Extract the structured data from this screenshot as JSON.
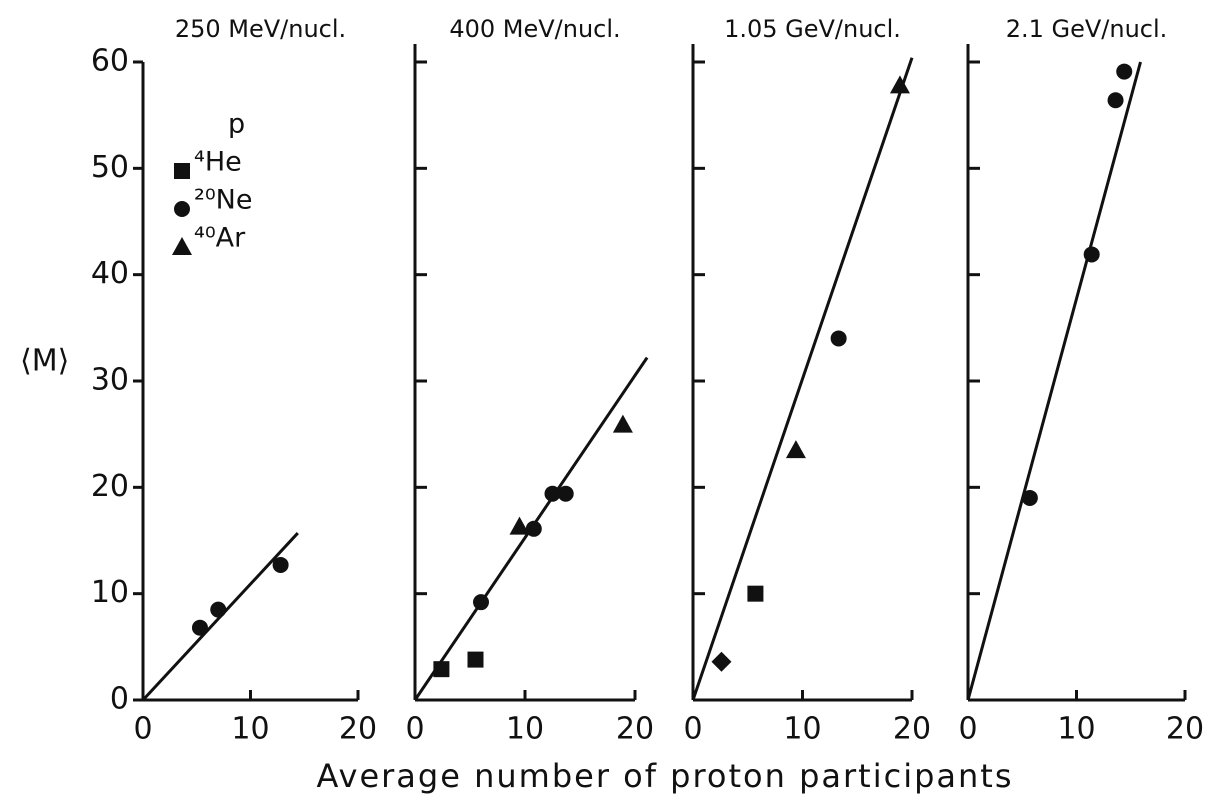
{
  "y_label": "⟨M⟩",
  "x_label": "Average number of proton participants",
  "legend": [
    {
      "name": "p",
      "marker": "diamond",
      "show_marker": false
    },
    {
      "name": "⁴He",
      "marker": "square"
    },
    {
      "name": "²⁰Ne",
      "marker": "circle"
    },
    {
      "name": "⁴⁰Ar",
      "marker": "triangle"
    }
  ],
  "chart_data": [
    {
      "type": "scatter",
      "title": "250 MeV/nucl.",
      "xlim": [
        0,
        20
      ],
      "xticks": [
        0,
        10,
        20
      ],
      "ylim": [
        0,
        60
      ],
      "yticks": [
        0,
        10,
        20,
        30,
        40,
        50,
        60
      ],
      "color": "#111111",
      "series": [
        {
          "name": "²⁰Ne",
          "marker": "circle",
          "x": [
            5.3,
            7.0,
            12.8
          ],
          "values": [
            6.8,
            8.5,
            12.7
          ]
        }
      ],
      "fit": {
        "x": [
          0,
          14.4
        ],
        "values": [
          0,
          15.7
        ]
      }
    },
    {
      "type": "scatter",
      "title": "400 MeV/nucl.",
      "xlim": [
        0,
        20
      ],
      "xticks": [
        0,
        10,
        20
      ],
      "ylim": [
        0,
        60
      ],
      "yticks": [
        0,
        10,
        20,
        30,
        40,
        50,
        60
      ],
      "color": "#111111",
      "series": [
        {
          "name": "⁴He",
          "marker": "square",
          "x": [
            2.4,
            5.5
          ],
          "values": [
            2.9,
            3.8
          ]
        },
        {
          "name": "²⁰Ne",
          "marker": "circle",
          "x": [
            6.0,
            10.8,
            12.5,
            13.7
          ],
          "values": [
            9.2,
            16.1,
            19.4,
            19.4
          ]
        },
        {
          "name": "⁴⁰Ar",
          "marker": "triangle",
          "x": [
            9.5,
            18.9
          ],
          "values": [
            16.3,
            25.9
          ]
        }
      ],
      "fit": {
        "x": [
          0,
          21.1
        ],
        "values": [
          0,
          32.2
        ]
      }
    },
    {
      "type": "scatter",
      "title": "1.05 GeV/nucl.",
      "xlim": [
        0,
        20
      ],
      "xticks": [
        0,
        10,
        20
      ],
      "ylim": [
        0,
        60
      ],
      "yticks": [
        0,
        10,
        20,
        30,
        40,
        50,
        60
      ],
      "color": "#111111",
      "series": [
        {
          "name": "p",
          "marker": "diamond",
          "x": [
            2.6
          ],
          "values": [
            3.6
          ]
        },
        {
          "name": "⁴He",
          "marker": "square",
          "x": [
            5.7
          ],
          "values": [
            10.0
          ]
        },
        {
          "name": "²⁰Ne",
          "marker": "circle",
          "x": [
            13.3
          ],
          "values": [
            34.0
          ]
        },
        {
          "name": "⁴⁰Ar",
          "marker": "triangle",
          "x": [
            9.4,
            18.9
          ],
          "values": [
            23.5,
            57.8
          ]
        }
      ],
      "fit": {
        "x": [
          0,
          20
        ],
        "values": [
          0,
          60.4
        ]
      }
    },
    {
      "type": "scatter",
      "title": "2.1 GeV/nucl.",
      "xlim": [
        0,
        20
      ],
      "xticks": [
        0,
        10,
        20
      ],
      "ylim": [
        0,
        60
      ],
      "yticks": [
        0,
        10,
        20,
        30,
        40,
        50,
        60
      ],
      "color": "#111111",
      "series": [
        {
          "name": "²⁰Ne",
          "marker": "circle",
          "x": [
            5.7,
            11.4,
            13.6,
            14.4
          ],
          "values": [
            19.0,
            41.9,
            56.4,
            59.1
          ]
        }
      ],
      "fit": {
        "x": [
          0,
          15.9
        ],
        "values": [
          0,
          60
        ]
      }
    }
  ]
}
